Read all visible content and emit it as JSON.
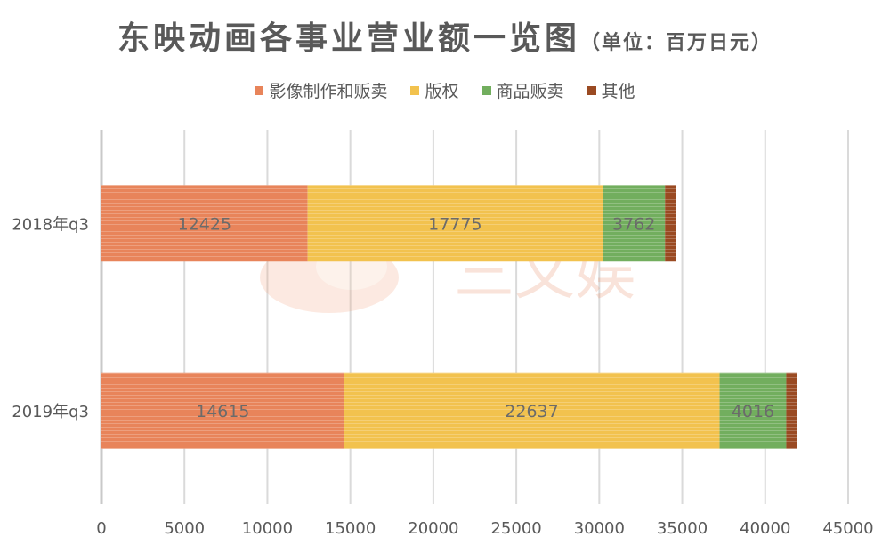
{
  "title": "东映动画各事业营业额一览图",
  "subtitle": "（单位：百万日元）",
  "watermark": "三文娱",
  "chart_data": {
    "type": "bar",
    "orientation": "horizontal",
    "stacked": true,
    "categories": [
      "2018年q3",
      "2019年q3"
    ],
    "series": [
      {
        "name": "影像制作和贩卖",
        "color": "#E8845A",
        "values": [
          12425,
          14615
        ],
        "labels": [
          "12425",
          "14615"
        ]
      },
      {
        "name": "版权",
        "color": "#F2C24E",
        "values": [
          17775,
          22637
        ],
        "labels": [
          "17775",
          "22637"
        ]
      },
      {
        "name": "商品贩卖",
        "color": "#72AE5E",
        "values": [
          3762,
          4016
        ],
        "labels": [
          "3762",
          "4016"
        ]
      },
      {
        "name": "其他",
        "color": "#9A4A22",
        "values": [
          650,
          650
        ],
        "labels": [
          "",
          ""
        ]
      }
    ],
    "xlim": [
      0,
      45000
    ],
    "xticks": [
      "0",
      "5000",
      "10000",
      "15000",
      "20000",
      "25000",
      "30000",
      "35000",
      "40000",
      "45000"
    ],
    "grid": true,
    "legend_position": "top"
  }
}
